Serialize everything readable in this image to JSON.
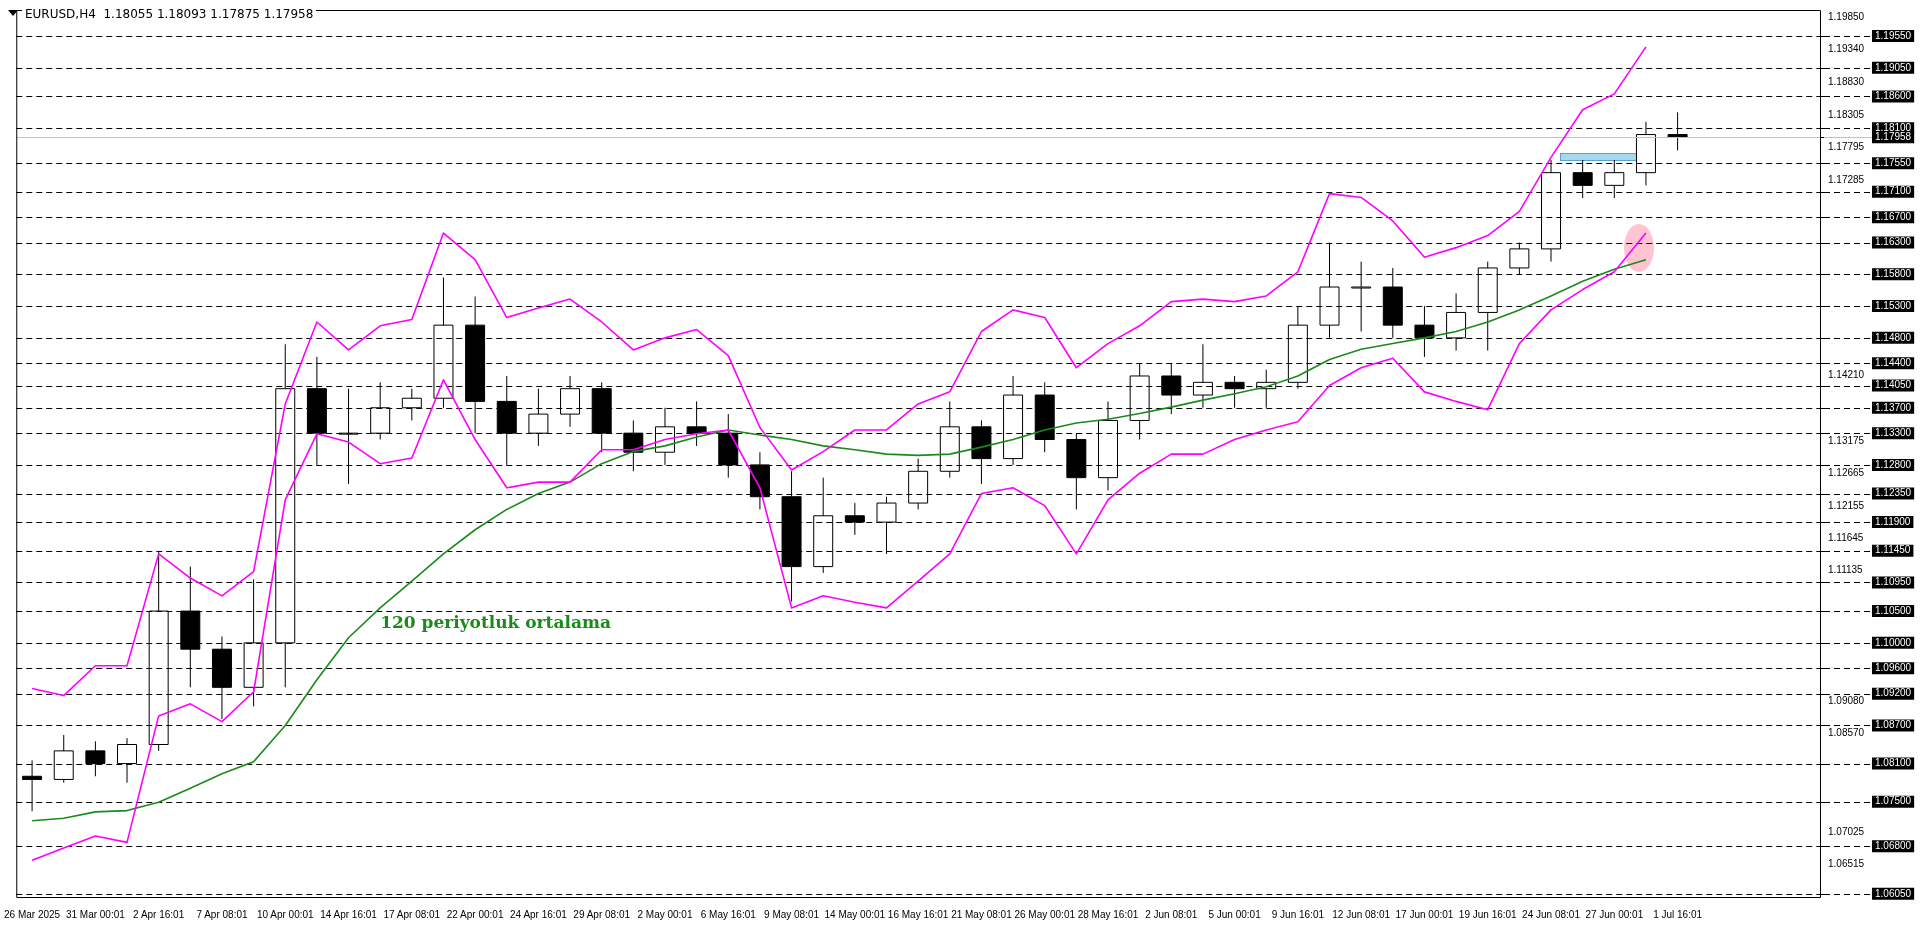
{
  "chart_data": {
    "type": "candlestick",
    "title": "EURUSD,H4  1.18055 1.18093 1.17875 1.17958",
    "categories": [
      "26 Mar 2025",
      null,
      "31 Mar 00:01",
      null,
      "2 Apr 16:01",
      null,
      "7 Apr 08:01",
      null,
      "10 Apr 00:01",
      null,
      "14 Apr 16:01",
      null,
      "17 Apr 08:01",
      null,
      "22 Apr 00:01",
      null,
      "24 Apr 16:01",
      null,
      "29 Apr 08:01",
      null,
      "2 May 00:01",
      null,
      "6 May 16:01",
      null,
      "9 May 08:01",
      null,
      "14 May 00:01",
      null,
      "16 May 16:01",
      null,
      "21 May 08:01",
      null,
      "26 May 00:01",
      null,
      "28 May 16:01",
      null,
      "2 Jun 08:01",
      null,
      "5 Jun 00:01",
      null,
      "9 Jun 16:01",
      null,
      "12 Jun 08:01",
      null,
      "17 Jun 00:01",
      null,
      "19 Jun 16:01",
      null,
      "24 Jun 08:01",
      null,
      "27 Jun 00:01",
      null,
      "1 Jul 16:01",
      null,
      null,
      null,
      null
    ],
    "ohlc": [
      [
        1.079,
        1.0815,
        1.0735,
        1.0785
      ],
      [
        1.0785,
        1.0855,
        1.078,
        1.083
      ],
      [
        1.083,
        1.0845,
        1.079,
        1.081
      ],
      [
        1.081,
        1.085,
        1.078,
        1.084
      ],
      [
        1.084,
        1.1145,
        1.083,
        1.105
      ],
      [
        1.105,
        1.112,
        1.093,
        1.099
      ],
      [
        1.099,
        1.101,
        1.088,
        1.093
      ],
      [
        1.093,
        1.11,
        1.09,
        1.1
      ],
      [
        1.1,
        1.147,
        1.093,
        1.14
      ],
      [
        1.14,
        1.145,
        1.128,
        1.133
      ],
      [
        1.133,
        1.14,
        1.125,
        1.133
      ],
      [
        1.133,
        1.141,
        1.132,
        1.137
      ],
      [
        1.137,
        1.14,
        1.135,
        1.1385
      ],
      [
        1.1385,
        1.1575,
        1.137,
        1.15
      ],
      [
        1.15,
        1.1545,
        1.133,
        1.138
      ],
      [
        1.138,
        1.142,
        1.128,
        1.133
      ],
      [
        1.133,
        1.14,
        1.131,
        1.136
      ],
      [
        1.136,
        1.142,
        1.134,
        1.14
      ],
      [
        1.14,
        1.141,
        1.13,
        1.133
      ],
      [
        1.133,
        1.135,
        1.127,
        1.13
      ],
      [
        1.13,
        1.137,
        1.128,
        1.134
      ],
      [
        1.134,
        1.138,
        1.131,
        1.133
      ],
      [
        1.133,
        1.136,
        1.126,
        1.128
      ],
      [
        1.128,
        1.13,
        1.121,
        1.123
      ],
      [
        1.123,
        1.127,
        1.1065,
        1.112
      ],
      [
        1.112,
        1.126,
        1.111,
        1.12
      ],
      [
        1.12,
        1.122,
        1.117,
        1.119
      ],
      [
        1.119,
        1.123,
        1.114,
        1.122
      ],
      [
        1.122,
        1.129,
        1.121,
        1.127
      ],
      [
        1.127,
        1.138,
        1.126,
        1.134
      ],
      [
        1.134,
        1.135,
        1.125,
        1.129
      ],
      [
        1.129,
        1.142,
        1.128,
        1.139
      ],
      [
        1.139,
        1.141,
        1.13,
        1.132
      ],
      [
        1.132,
        1.133,
        1.121,
        1.126
      ],
      [
        1.126,
        1.138,
        1.124,
        1.135
      ],
      [
        1.135,
        1.144,
        1.132,
        1.142
      ],
      [
        1.142,
        1.144,
        1.136,
        1.139
      ],
      [
        1.139,
        1.147,
        1.137,
        1.141
      ],
      [
        1.141,
        1.142,
        1.137,
        1.14
      ],
      [
        1.14,
        1.143,
        1.137,
        1.141
      ],
      [
        1.141,
        1.153,
        1.14,
        1.15
      ],
      [
        1.15,
        1.163,
        1.148,
        1.156
      ],
      [
        1.156,
        1.16,
        1.149,
        1.156
      ],
      [
        1.156,
        1.159,
        1.148,
        1.15
      ],
      [
        1.15,
        1.153,
        1.145,
        1.148
      ],
      [
        1.148,
        1.155,
        1.146,
        1.152
      ],
      [
        1.152,
        1.16,
        1.146,
        1.159
      ],
      [
        1.159,
        1.163,
        1.158,
        1.162
      ],
      [
        1.162,
        1.176,
        1.16,
        1.174
      ],
      [
        1.174,
        1.176,
        1.17,
        1.172
      ],
      [
        1.172,
        1.176,
        1.17,
        1.174
      ],
      [
        1.174,
        1.182,
        1.172,
        1.18
      ],
      [
        1.18,
        1.1835,
        1.1775,
        1.17958
      ],
      null,
      null,
      null,
      null
    ],
    "series": [
      {
        "type": "line",
        "color": "#ff00ff",
        "values": [
          1.0928,
          1.0917,
          1.0964,
          1.0964,
          1.114,
          1.1102,
          1.1074,
          1.1112,
          1.1376,
          1.1505,
          1.1461,
          1.1499,
          1.1509,
          1.1645,
          1.1603,
          1.1512,
          1.1527,
          1.1541,
          1.1505,
          1.1461,
          1.148,
          1.1493,
          1.1452,
          1.1339,
          1.1272,
          1.1301,
          1.1335,
          1.1335,
          1.1376,
          1.1395,
          1.149,
          1.1524,
          1.1512,
          1.1433,
          1.1471,
          1.1499,
          1.1537,
          1.1541,
          1.1537,
          1.1546,
          1.1584,
          1.1707,
          1.1701,
          1.1664,
          1.1607,
          1.1622,
          1.1641,
          1.1679,
          1.1764,
          1.1839,
          1.1864,
          1.1938,
          null,
          null,
          null,
          null,
          null
        ]
      },
      {
        "type": "line",
        "color": "#ff00ff",
        "values": [
          1.0658,
          1.0677,
          1.0696,
          1.0686,
          1.0885,
          1.0904,
          1.0876,
          1.0923,
          1.1225,
          1.1329,
          1.1316,
          1.1282,
          1.1291,
          1.1414,
          1.132,
          1.1244,
          1.1253,
          1.1253,
          1.1304,
          1.1304,
          1.132,
          1.1329,
          1.1335,
          1.1244,
          1.1055,
          1.1074,
          1.1064,
          1.1055,
          1.1097,
          1.114,
          1.1235,
          1.1244,
          1.1216,
          1.114,
          1.1225,
          1.1267,
          1.1297,
          1.1297,
          1.132,
          1.1335,
          1.1348,
          1.1405,
          1.1433,
          1.1448,
          1.1395,
          1.138,
          1.1367,
          1.1471,
          1.1524,
          1.1556,
          1.1584,
          1.1645,
          null,
          null,
          null,
          null,
          null
        ]
      },
      {
        "type": "line",
        "name": "120 periyotluk ortalama",
        "color": "#1a8a1a",
        "values": [
          1.072,
          1.0724,
          1.0734,
          1.0736,
          1.0749,
          1.0771,
          1.0794,
          1.0813,
          1.087,
          1.0942,
          1.1008,
          1.1055,
          1.1097,
          1.114,
          1.1178,
          1.121,
          1.1235,
          1.1253,
          1.1282,
          1.1301,
          1.131,
          1.1324,
          1.1335,
          1.1327,
          1.132,
          1.131,
          1.1304,
          1.1297,
          1.1295,
          1.1297,
          1.1308,
          1.132,
          1.1335,
          1.1346,
          1.1352,
          1.1361,
          1.1371,
          1.1382,
          1.1392,
          1.1403,
          1.142,
          1.1446,
          1.1462,
          1.1471,
          1.148,
          1.149,
          1.1505,
          1.1524,
          1.1546,
          1.1569,
          1.1588,
          1.1603,
          null,
          null,
          null,
          null,
          null
        ]
      }
    ],
    "ylim": [
      1.06,
      1.1996
    ],
    "yticks": [
      {
        "value": 1.1985,
        "label": "1.19850"
      },
      {
        "value": 1.1934,
        "label": "1.19340"
      },
      {
        "value": 1.1883,
        "label": "1.18830"
      },
      {
        "value": 1.18305,
        "label": "1.18305"
      },
      {
        "value": 1.17795,
        "label": "1.17795"
      },
      {
        "value": 1.17285,
        "label": "1.17285"
      },
      {
        "value": 1.1421,
        "label": "1.14210"
      },
      {
        "value": 1.13175,
        "label": "1.13175"
      },
      {
        "value": 1.12665,
        "label": "1.12665"
      },
      {
        "value": 1.12155,
        "label": "1.12155"
      },
      {
        "value": 1.11645,
        "label": "1.11645"
      },
      {
        "value": 1.11135,
        "label": "1.11135"
      },
      {
        "value": 1.0908,
        "label": "1.09080"
      },
      {
        "value": 1.0857,
        "label": "1.08570"
      },
      {
        "value": 1.07025,
        "label": "1.07025"
      },
      {
        "value": 1.06515,
        "label": "1.06515"
      }
    ],
    "ref_lines": [
      {
        "axis": "y",
        "value": 1.1955,
        "label": "1.19550",
        "line_style": "dashed"
      },
      {
        "axis": "y",
        "value": 1.1905,
        "label": "1.19050",
        "line_style": "dashed"
      },
      {
        "axis": "y",
        "value": 1.186,
        "label": "1.18600",
        "line_style": "dashed"
      },
      {
        "axis": "y",
        "value": 1.181,
        "label": "1.18100",
        "line_style": "dashed"
      },
      {
        "axis": "y",
        "value": 1.17958,
        "label": "1.17958",
        "line_style": "solid",
        "color": "#c0c0c0"
      },
      {
        "axis": "y",
        "value": 1.1755,
        "label": "1.17550",
        "line_style": "dashed"
      },
      {
        "axis": "y",
        "value": 1.171,
        "label": "1.17100",
        "line_style": "dashed"
      },
      {
        "axis": "y",
        "value": 1.167,
        "label": "1.16700",
        "line_style": "dashed"
      },
      {
        "axis": "y",
        "value": 1.163,
        "label": "1.16300",
        "line_style": "dashed"
      },
      {
        "axis": "y",
        "value": 1.158,
        "label": "1.15800",
        "line_style": "dashed"
      },
      {
        "axis": "y",
        "value": 1.153,
        "label": "1.15300",
        "line_style": "dashed"
      },
      {
        "axis": "y",
        "value": 1.148,
        "label": "1.14800",
        "line_style": "dashed"
      },
      {
        "axis": "y",
        "value": 1.144,
        "label": "1.14400",
        "line_style": "dashed"
      },
      {
        "axis": "y",
        "value": 1.1405,
        "label": "1.14050",
        "line_style": "dashed"
      },
      {
        "axis": "y",
        "value": 1.137,
        "label": "1.13700",
        "line_style": "dashed"
      },
      {
        "axis": "y",
        "value": 1.133,
        "label": "1.13300",
        "line_style": "dashed"
      },
      {
        "axis": "y",
        "value": 1.128,
        "label": "1.12800",
        "line_style": "dashed"
      },
      {
        "axis": "y",
        "value": 1.1235,
        "label": "1.12350",
        "line_style": "dashed"
      },
      {
        "axis": "y",
        "value": 1.119,
        "label": "1.11900",
        "line_style": "dashed"
      },
      {
        "axis": "y",
        "value": 1.1145,
        "label": "1.11450",
        "line_style": "dashed"
      },
      {
        "axis": "y",
        "value": 1.1095,
        "label": "1.10950",
        "line_style": "dashed"
      },
      {
        "axis": "y",
        "value": 1.105,
        "label": "1.10500",
        "line_style": "dashed"
      },
      {
        "axis": "y",
        "value": 1.1,
        "label": "1.10000",
        "line_style": "dashed"
      },
      {
        "axis": "y",
        "value": 1.096,
        "label": "1.09600",
        "line_style": "dashed"
      },
      {
        "axis": "y",
        "value": 1.092,
        "label": "1.09200",
        "line_style": "dashed"
      },
      {
        "axis": "y",
        "value": 1.087,
        "label": "1.08700",
        "line_style": "dashed"
      },
      {
        "axis": "y",
        "value": 1.081,
        "label": "1.08100",
        "line_style": "dashed"
      },
      {
        "axis": "y",
        "value": 1.075,
        "label": "1.07500",
        "line_style": "dashed"
      },
      {
        "axis": "y",
        "value": 1.068,
        "label": "1.06800",
        "line_style": "dashed"
      },
      {
        "axis": "y",
        "value": 1.0605,
        "label": "1.06050",
        "line_style": "dashed"
      }
    ]
  }
}
